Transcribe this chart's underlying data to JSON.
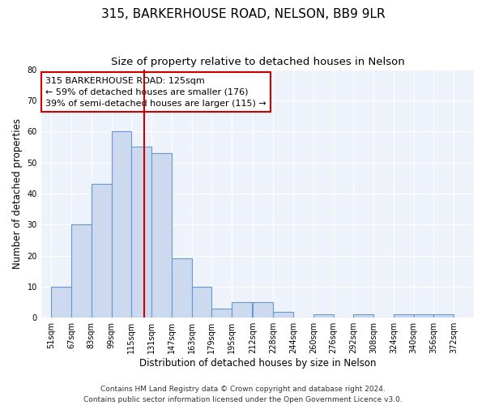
{
  "title": "315, BARKERHOUSE ROAD, NELSON, BB9 9LR",
  "subtitle": "Size of property relative to detached houses in Nelson",
  "xlabel": "Distribution of detached houses by size in Nelson",
  "ylabel": "Number of detached properties",
  "bar_left_edges": [
    51,
    67,
    83,
    99,
    115,
    131,
    147,
    163,
    179,
    195,
    212,
    228,
    244,
    260,
    276,
    292,
    308,
    324,
    340,
    356
  ],
  "bar_heights": [
    10,
    30,
    43,
    60,
    55,
    53,
    19,
    10,
    3,
    5,
    5,
    2,
    0,
    1,
    0,
    1,
    0,
    1,
    1,
    1
  ],
  "bin_width": 16,
  "bar_color": "#ccd9ef",
  "bar_edge_color": "#6699cc",
  "vline_x": 125,
  "vline_color": "#cc0000",
  "ylim": [
    0,
    80
  ],
  "yticks": [
    0,
    10,
    20,
    30,
    40,
    50,
    60,
    70,
    80
  ],
  "xtick_labels": [
    "51sqm",
    "67sqm",
    "83sqm",
    "99sqm",
    "115sqm",
    "131sqm",
    "147sqm",
    "163sqm",
    "179sqm",
    "195sqm",
    "212sqm",
    "228sqm",
    "244sqm",
    "260sqm",
    "276sqm",
    "292sqm",
    "308sqm",
    "324sqm",
    "340sqm",
    "356sqm",
    "372sqm"
  ],
  "xtick_positions": [
    51,
    67,
    83,
    99,
    115,
    131,
    147,
    163,
    179,
    195,
    212,
    228,
    244,
    260,
    276,
    292,
    308,
    324,
    340,
    356,
    372
  ],
  "annotation_line1": "315 BARKERHOUSE ROAD: 125sqm",
  "annotation_line2": "← 59% of detached houses are smaller (176)",
  "annotation_line3": "39% of semi-detached houses are larger (115) →",
  "annotation_box_color": "white",
  "annotation_box_edge_color": "#cc0000",
  "footer_line1": "Contains HM Land Registry data © Crown copyright and database right 2024.",
  "footer_line2": "Contains public sector information licensed under the Open Government Licence v3.0.",
  "background_color": "#eef2fa",
  "grid_color": "white",
  "title_fontsize": 11,
  "subtitle_fontsize": 9.5,
  "axis_label_fontsize": 8.5,
  "tick_fontsize": 7,
  "annotation_fontsize": 8,
  "footer_fontsize": 6.5
}
